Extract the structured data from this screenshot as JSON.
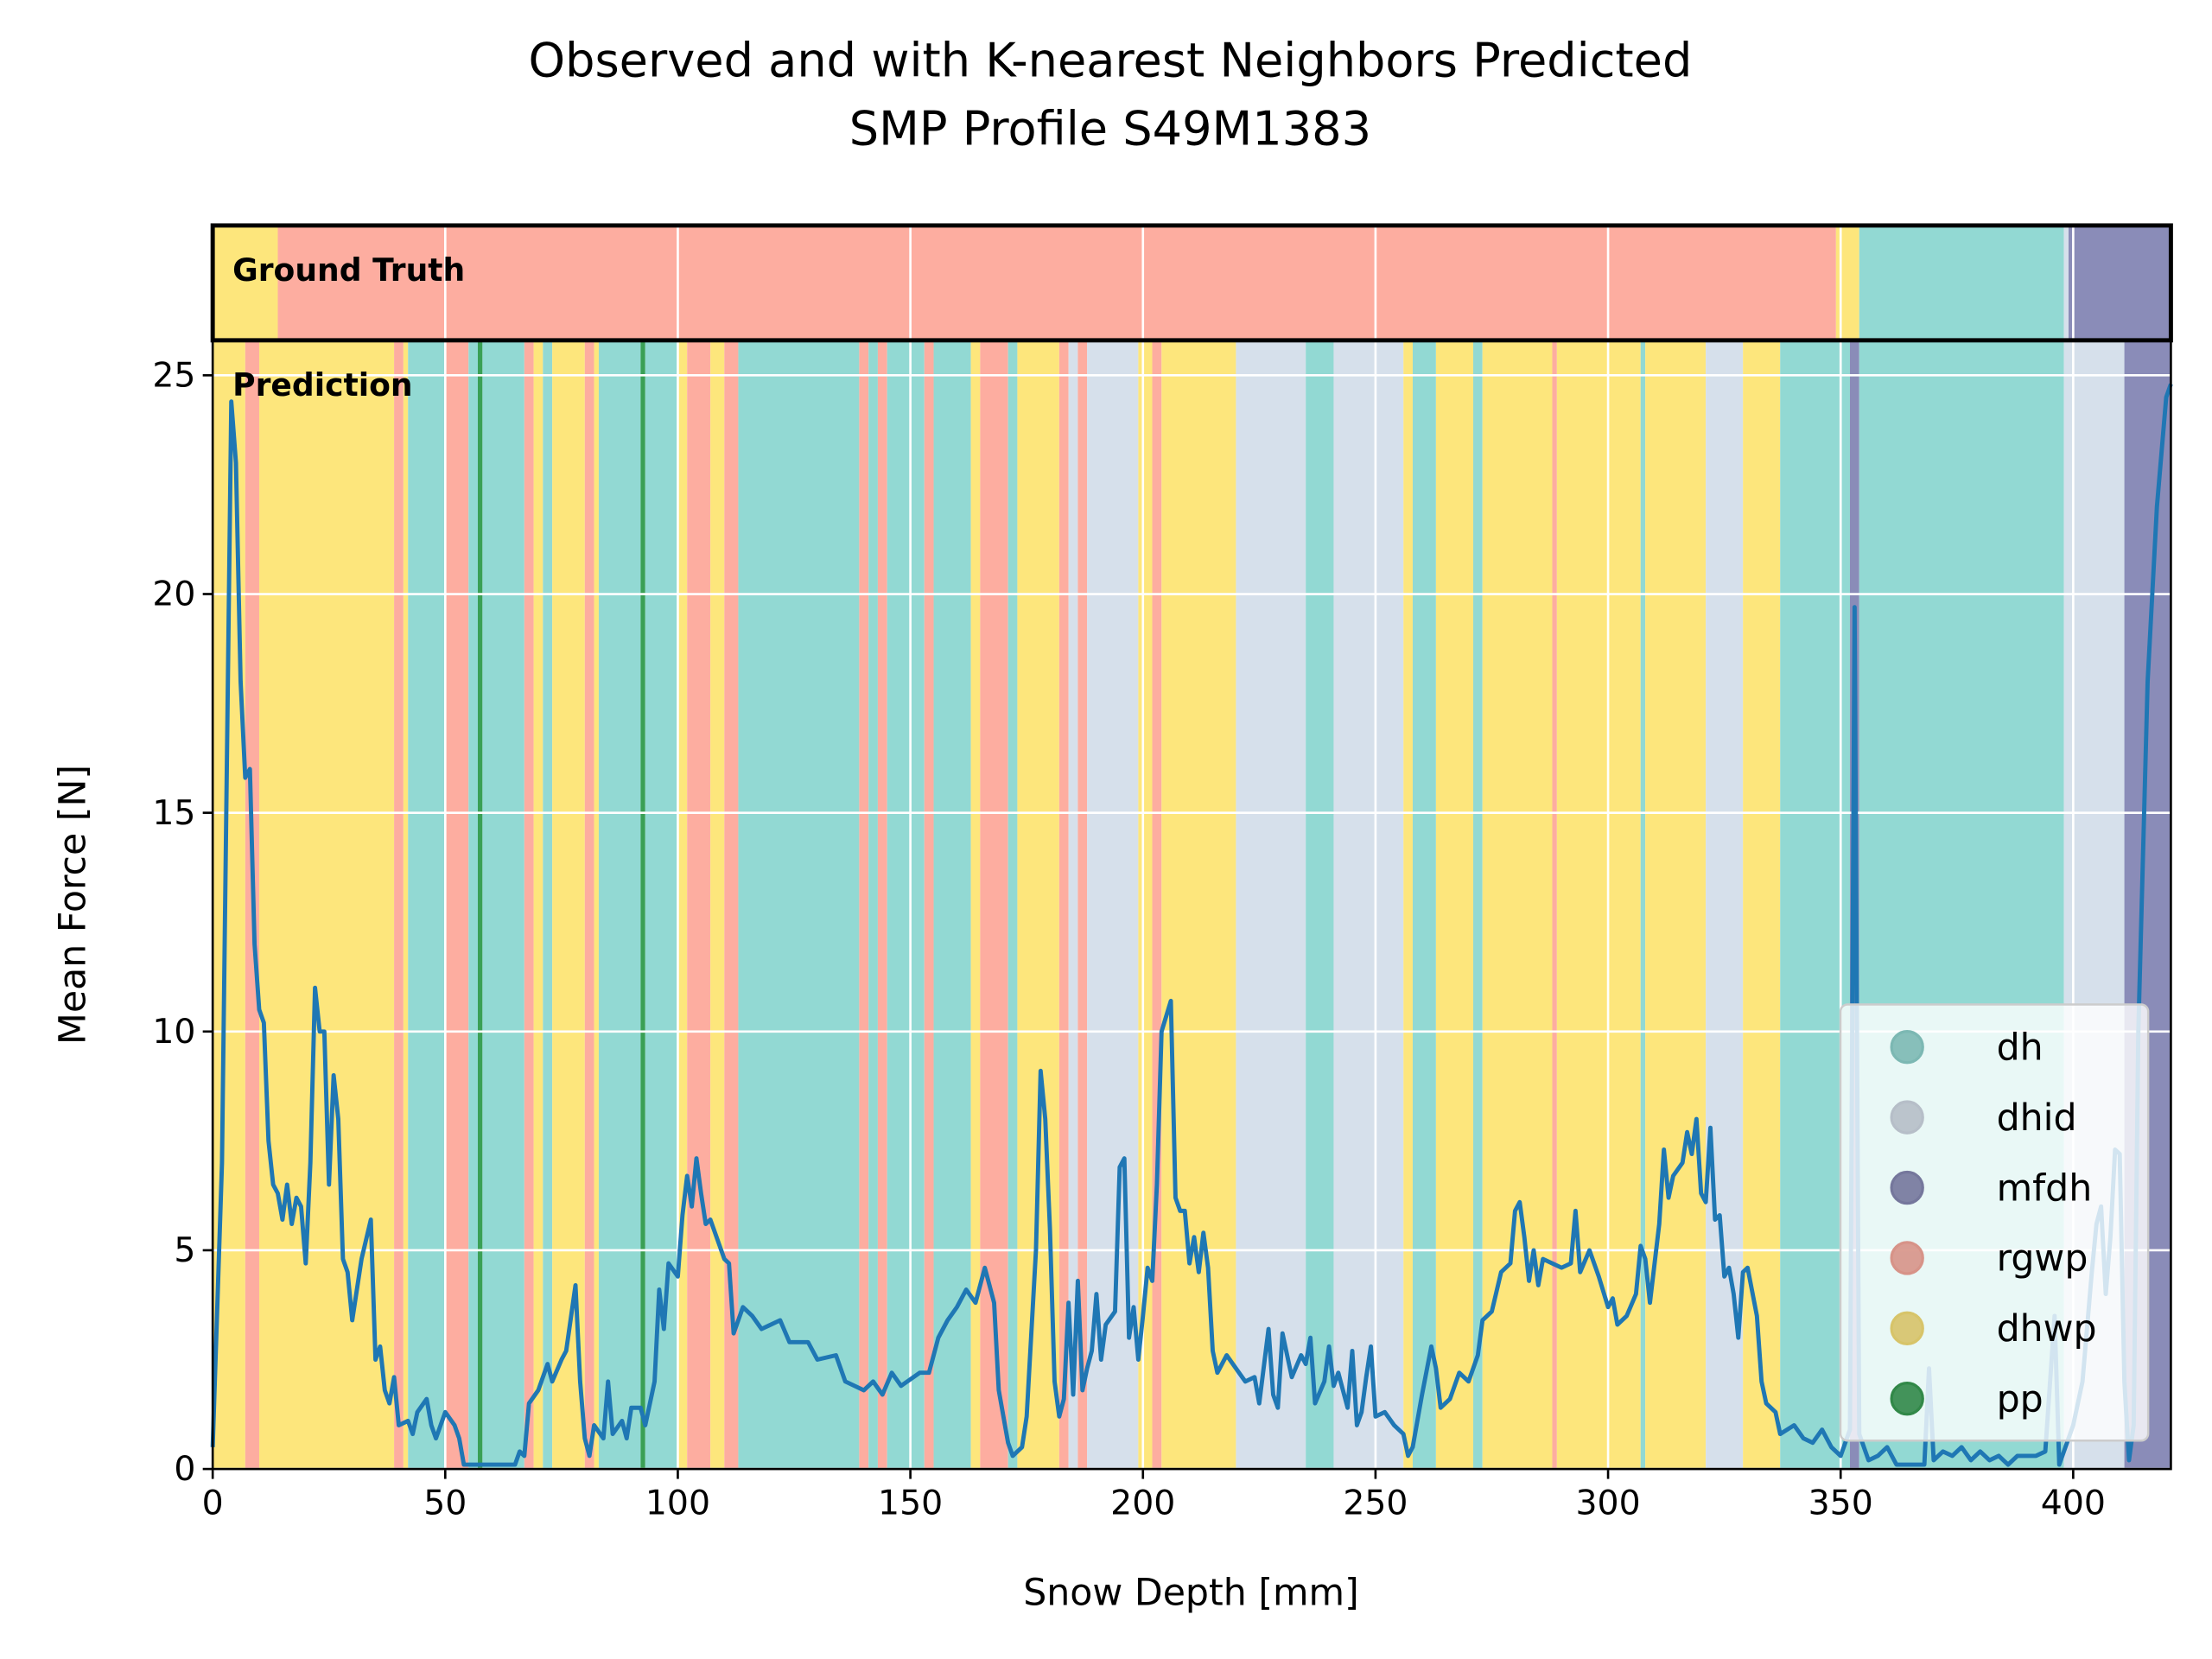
{
  "chart_data": {
    "type": "line",
    "title": "Observed and with K-nearest Neighbors Predicted",
    "subtitle": "SMP Profile S49M1383",
    "x_label": "Snow Depth [mm]",
    "y_label": "Mean Force [N]",
    "annotations": [
      "Ground Truth",
      "Prediction"
    ],
    "xlim": [
      0,
      421
    ],
    "ylim": [
      0,
      25.8
    ],
    "xticks": [
      0,
      50,
      100,
      150,
      200,
      250,
      300,
      350,
      400
    ],
    "yticks": [
      0,
      5,
      10,
      15,
      20,
      25
    ],
    "grid": true,
    "legend_position": "lower right",
    "classes": [
      {
        "name": "dh",
        "color": "#92d9d3"
      },
      {
        "name": "dhid",
        "color": "#d6e0eb"
      },
      {
        "name": "mfdh",
        "color": "#8a8cb8"
      },
      {
        "name": "rgwp",
        "color": "#fdada0"
      },
      {
        "name": "dhwp",
        "color": "#fde67c"
      },
      {
        "name": "pp",
        "color": "#3aa055"
      }
    ],
    "ground_truth": [
      {
        "start": 0,
        "end": 14,
        "label": "dhwp"
      },
      {
        "start": 14,
        "end": 349,
        "label": "rgwp"
      },
      {
        "start": 349,
        "end": 354,
        "label": "dhwp"
      },
      {
        "start": 354,
        "end": 398,
        "label": "dh"
      },
      {
        "start": 398,
        "end": 399,
        "label": "dhid"
      },
      {
        "start": 399,
        "end": 421,
        "label": "mfdh"
      }
    ],
    "prediction": [
      {
        "start": 0,
        "end": 7,
        "label": "dhwp"
      },
      {
        "start": 7,
        "end": 10,
        "label": "rgwp"
      },
      {
        "start": 10,
        "end": 39,
        "label": "dhwp"
      },
      {
        "start": 39,
        "end": 41,
        "label": "rgwp"
      },
      {
        "start": 41,
        "end": 42,
        "label": "dhwp"
      },
      {
        "start": 42,
        "end": 50,
        "label": "dh"
      },
      {
        "start": 50,
        "end": 55,
        "label": "rgwp"
      },
      {
        "start": 55,
        "end": 57,
        "label": "dh"
      },
      {
        "start": 57,
        "end": 58,
        "label": "pp"
      },
      {
        "start": 58,
        "end": 67,
        "label": "dh"
      },
      {
        "start": 67,
        "end": 69,
        "label": "rgwp"
      },
      {
        "start": 69,
        "end": 71,
        "label": "dhwp"
      },
      {
        "start": 71,
        "end": 73,
        "label": "dh"
      },
      {
        "start": 73,
        "end": 80,
        "label": "dhwp"
      },
      {
        "start": 80,
        "end": 82,
        "label": "rgwp"
      },
      {
        "start": 82,
        "end": 83,
        "label": "dhwp"
      },
      {
        "start": 83,
        "end": 92,
        "label": "dh"
      },
      {
        "start": 92,
        "end": 93,
        "label": "pp"
      },
      {
        "start": 93,
        "end": 100,
        "label": "dh"
      },
      {
        "start": 100,
        "end": 102,
        "label": "dhwp"
      },
      {
        "start": 102,
        "end": 107,
        "label": "rgwp"
      },
      {
        "start": 107,
        "end": 110,
        "label": "dhwp"
      },
      {
        "start": 110,
        "end": 113,
        "label": "rgwp"
      },
      {
        "start": 113,
        "end": 139,
        "label": "dh"
      },
      {
        "start": 139,
        "end": 141,
        "label": "rgwp"
      },
      {
        "start": 141,
        "end": 143,
        "label": "dh"
      },
      {
        "start": 143,
        "end": 145,
        "label": "rgwp"
      },
      {
        "start": 145,
        "end": 153,
        "label": "dh"
      },
      {
        "start": 153,
        "end": 155,
        "label": "rgwp"
      },
      {
        "start": 155,
        "end": 163,
        "label": "dh"
      },
      {
        "start": 163,
        "end": 165,
        "label": "dhwp"
      },
      {
        "start": 165,
        "end": 171,
        "label": "rgwp"
      },
      {
        "start": 171,
        "end": 173,
        "label": "dh"
      },
      {
        "start": 173,
        "end": 182,
        "label": "dhwp"
      },
      {
        "start": 182,
        "end": 184,
        "label": "rgwp"
      },
      {
        "start": 184,
        "end": 186,
        "label": "dhid"
      },
      {
        "start": 186,
        "end": 188,
        "label": "rgwp"
      },
      {
        "start": 188,
        "end": 199,
        "label": "dhid"
      },
      {
        "start": 199,
        "end": 202,
        "label": "dhwp"
      },
      {
        "start": 202,
        "end": 204,
        "label": "rgwp"
      },
      {
        "start": 204,
        "end": 220,
        "label": "dhwp"
      },
      {
        "start": 220,
        "end": 235,
        "label": "dhid"
      },
      {
        "start": 235,
        "end": 241,
        "label": "dh"
      },
      {
        "start": 241,
        "end": 256,
        "label": "dhid"
      },
      {
        "start": 256,
        "end": 258,
        "label": "dhwp"
      },
      {
        "start": 258,
        "end": 263,
        "label": "dh"
      },
      {
        "start": 263,
        "end": 271,
        "label": "dhwp"
      },
      {
        "start": 271,
        "end": 273,
        "label": "dh"
      },
      {
        "start": 273,
        "end": 288,
        "label": "dhwp"
      },
      {
        "start": 288,
        "end": 289,
        "label": "rgwp"
      },
      {
        "start": 289,
        "end": 307,
        "label": "dhwp"
      },
      {
        "start": 307,
        "end": 308,
        "label": "dh"
      },
      {
        "start": 308,
        "end": 321,
        "label": "dhwp"
      },
      {
        "start": 321,
        "end": 329,
        "label": "dhid"
      },
      {
        "start": 329,
        "end": 337,
        "label": "dhwp"
      },
      {
        "start": 337,
        "end": 352,
        "label": "dh"
      },
      {
        "start": 352,
        "end": 354,
        "label": "mfdh"
      },
      {
        "start": 354,
        "end": 398,
        "label": "dh"
      },
      {
        "start": 398,
        "end": 411,
        "label": "dhid"
      },
      {
        "start": 411,
        "end": 421,
        "label": "mfdh"
      }
    ],
    "series": [
      {
        "color": "#1f77b4",
        "x": [
          0,
          2,
          4,
          5,
          6,
          7,
          8,
          9,
          10,
          11,
          12,
          13,
          14,
          15,
          16,
          17,
          18,
          19,
          20,
          21,
          22,
          23,
          24,
          25,
          26,
          27,
          28,
          29,
          30,
          32,
          34,
          35,
          36,
          37,
          38,
          39,
          40,
          42,
          43,
          44,
          46,
          47,
          48,
          50,
          52,
          53,
          54,
          60,
          65,
          66,
          67,
          68,
          70,
          72,
          73,
          75,
          76,
          78,
          79,
          80,
          81,
          82,
          84,
          85,
          86,
          88,
          89,
          90,
          92,
          93,
          95,
          96,
          97,
          98,
          100,
          101,
          102,
          103,
          104,
          105,
          106,
          107,
          110,
          111,
          112,
          114,
          116,
          118,
          122,
          124,
          128,
          130,
          134,
          136,
          140,
          142,
          144,
          146,
          148,
          152,
          154,
          156,
          158,
          160,
          162,
          164,
          166,
          168,
          169,
          171,
          172,
          174,
          175,
          177,
          178,
          179,
          180,
          181,
          182,
          183,
          184,
          185,
          186,
          187,
          188,
          189,
          190,
          191,
          192,
          194,
          195,
          196,
          197,
          198,
          199,
          200,
          201,
          202,
          203,
          204,
          206,
          207,
          208,
          209,
          210,
          211,
          212,
          213,
          214,
          215,
          216,
          218,
          220,
          222,
          224,
          225,
          227,
          228,
          229,
          230,
          232,
          234,
          235,
          236,
          237,
          239,
          240,
          241,
          242,
          244,
          245,
          246,
          247,
          248,
          249,
          250,
          252,
          254,
          256,
          257,
          258,
          260,
          262,
          263,
          264,
          266,
          268,
          270,
          272,
          273,
          275,
          277,
          279,
          280,
          281,
          282,
          283,
          284,
          285,
          286,
          288,
          290,
          292,
          293,
          294,
          296,
          298,
          300,
          301,
          302,
          304,
          306,
          307,
          308,
          309,
          311,
          312,
          313,
          314,
          316,
          317,
          318,
          319,
          320,
          321,
          322,
          323,
          324,
          325,
          326,
          327,
          328,
          329,
          330,
          332,
          333,
          334,
          336,
          337,
          340,
          342,
          344,
          346,
          348,
          350,
          352,
          353,
          354,
          356,
          358,
          360,
          362,
          364,
          368,
          369,
          370,
          372,
          374,
          376,
          378,
          380,
          382,
          384,
          386,
          388,
          390,
          392,
          394,
          396,
          397,
          398,
          400,
          402,
          404,
          405,
          406,
          407,
          408,
          409,
          410,
          411,
          412,
          413,
          414,
          416,
          418,
          420,
          421
        ],
        "values": [
          0.5,
          7,
          24.4,
          23,
          18,
          15.8,
          16,
          12,
          10.5,
          10.2,
          7.5,
          6.5,
          6.3,
          5.7,
          6.5,
          5.6,
          6.2,
          6,
          4.7,
          7,
          11,
          10,
          10,
          6.5,
          9,
          8,
          4.8,
          4.5,
          3.4,
          4.8,
          5.7,
          2.5,
          2.8,
          1.8,
          1.5,
          2.1,
          1,
          1.1,
          0.8,
          1.3,
          1.6,
          1,
          0.7,
          1.3,
          1,
          0.7,
          0.1,
          0.1,
          0.1,
          0.4,
          0.3,
          1.5,
          1.8,
          2.4,
          2,
          2.5,
          2.7,
          4.2,
          2,
          0.7,
          0.3,
          1,
          0.7,
          2,
          0.8,
          1.1,
          0.7,
          1.4,
          1.4,
          1,
          2,
          4.1,
          3.2,
          4.7,
          4.4,
          5.8,
          6.7,
          6,
          7.1,
          6.3,
          5.6,
          5.7,
          4.8,
          4.7,
          3.1,
          3.7,
          3.5,
          3.2,
          3.4,
          2.9,
          2.9,
          2.5,
          2.6,
          2,
          1.8,
          2,
          1.7,
          2.2,
          1.9,
          2.2,
          2.2,
          3,
          3.4,
          3.7,
          4.1,
          3.8,
          4.6,
          3.8,
          1.8,
          0.6,
          0.3,
          0.5,
          1.2,
          5,
          9.1,
          8,
          5.5,
          2,
          1.2,
          1.6,
          3.8,
          1.7,
          4.3,
          1.8,
          2.3,
          2.7,
          4,
          2.5,
          3.3,
          3.6,
          6.9,
          7.1,
          3,
          3.7,
          2.5,
          3.5,
          4.6,
          4.3,
          6.5,
          10,
          10.7,
          6.2,
          5.9,
          5.9,
          4.7,
          5.3,
          4.5,
          5.4,
          4.6,
          2.7,
          2.2,
          2.6,
          2.3,
          2,
          2.1,
          1.5,
          3.2,
          1.7,
          1.4,
          3.1,
          2.1,
          2.6,
          2.4,
          3,
          1.5,
          2,
          2.8,
          1.9,
          2.2,
          1.4,
          2.7,
          1,
          1.3,
          2.1,
          2.8,
          1.2,
          1.3,
          1,
          0.8,
          0.3,
          0.5,
          1.7,
          2.8,
          2.3,
          1.4,
          1.6,
          2.2,
          2,
          2.6,
          3.4,
          3.6,
          4.5,
          4.7,
          5.9,
          6.1,
          5.3,
          4.3,
          5,
          4.2,
          4.8,
          4.7,
          4.6,
          4.7,
          5.9,
          4.5,
          5,
          4.4,
          3.7,
          3.9,
          3.3,
          3.5,
          4,
          5.1,
          4.8,
          3.8,
          5.6,
          7.3,
          6.2,
          6.7,
          7,
          7.7,
          7.2,
          8,
          6.3,
          6.1,
          7.8,
          5.7,
          5.8,
          4.4,
          4.6,
          4,
          3,
          4.5,
          4.6,
          3.5,
          2,
          1.5,
          1.3,
          0.8,
          1,
          0.7,
          0.6,
          0.9,
          0.5,
          0.3,
          0.9,
          19.7,
          0.8,
          0.2,
          0.3,
          0.5,
          0.1,
          0.1,
          0.1,
          2.3,
          0.2,
          0.4,
          0.3,
          0.5,
          0.2,
          0.4,
          0.2,
          0.3,
          0.1,
          0.3,
          0.3,
          0.3,
          0.4,
          3.5,
          0.1,
          0.4,
          1,
          2,
          4.5,
          5.6,
          6,
          4,
          5.3,
          7.3,
          7.2,
          2,
          0.2,
          1,
          10,
          18,
          22,
          24.5,
          24.8
        ]
      }
    ]
  }
}
